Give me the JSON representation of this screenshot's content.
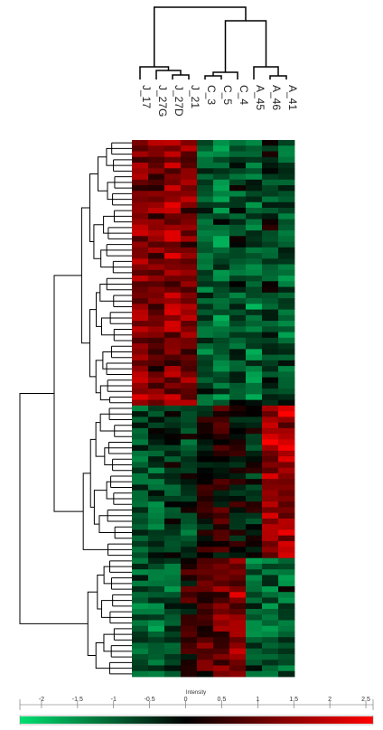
{
  "chart_data": {
    "type": "heatmap",
    "title": "",
    "columns": [
      "J_17",
      "J_27G",
      "J_27D",
      "J_21",
      "C_3",
      "C_5",
      "C_4",
      "A_45",
      "A_46",
      "A_41"
    ],
    "row_count": 95,
    "colorbar": {
      "title": "Intensity",
      "ticks": [
        "-2",
        "-1.5",
        "-1",
        "-0.5",
        "0",
        "0.5",
        "1",
        "1.5",
        "2",
        "2.5"
      ],
      "range": [
        -2.3,
        2.6
      ],
      "colors": {
        "low": "#00e070",
        "mid": "#000000",
        "high": "#ff0000"
      }
    },
    "column_dendrogram": "((J_17,(J_27G,(J_27D,J_21))),(((C_3,C_5),C_4),(A_45,(A_46,A_41))))",
    "row_clusters": [
      {
        "rows": [
          0,
          46
        ],
        "pattern": "J high, C/A low"
      },
      {
        "rows": [
          47,
          73
        ],
        "pattern": "A_46/A_41 high, C mixed"
      },
      {
        "rows": [
          74,
          94
        ],
        "pattern": "C high, A/J low"
      }
    ]
  }
}
